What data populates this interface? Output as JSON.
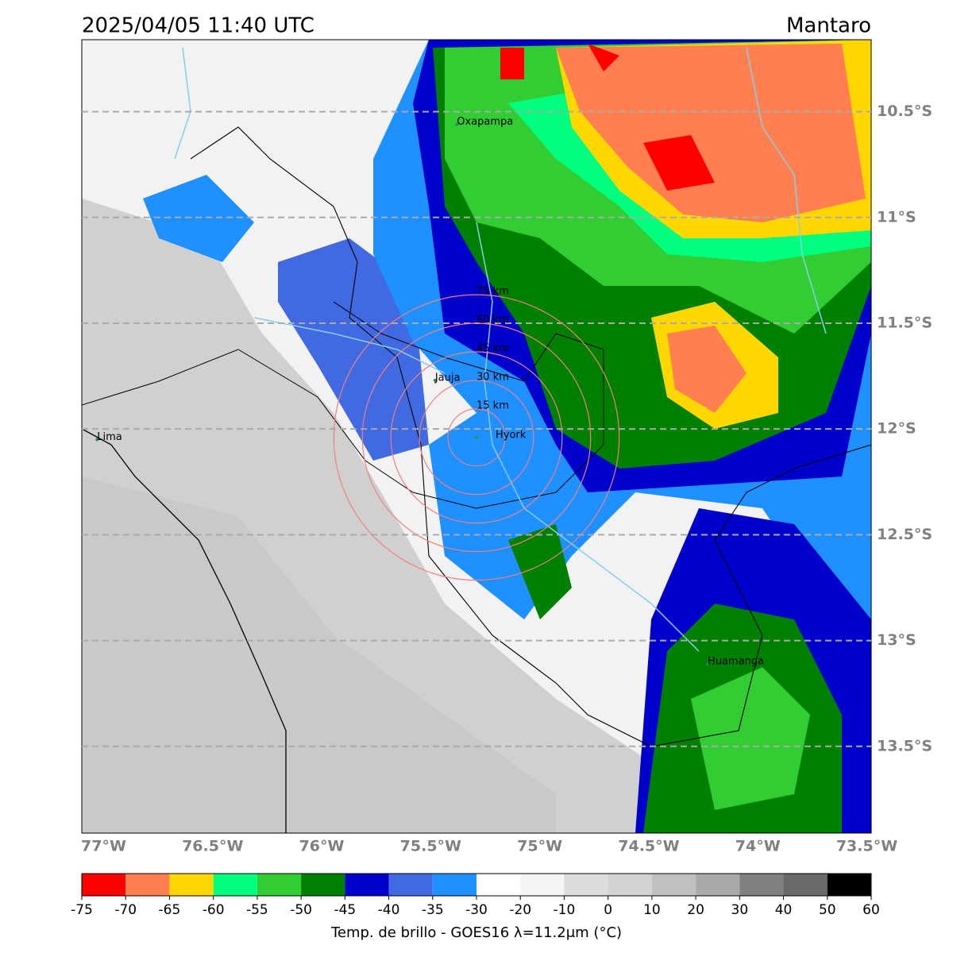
{
  "title": "2025/04/05 11:40 UTC",
  "region": "Mantaro",
  "map": {
    "xlim": [
      -77.1,
      -73.48
    ],
    "ylim": [
      -13.91,
      -10.16
    ],
    "xticks": [
      {
        "value": -77,
        "label": "77°W"
      },
      {
        "value": -76.5,
        "label": "76.5°W"
      },
      {
        "value": -76,
        "label": "76°W"
      },
      {
        "value": -75.5,
        "label": "75.5°W"
      },
      {
        "value": -75,
        "label": "75°W"
      },
      {
        "value": -74.5,
        "label": "74.5°W"
      },
      {
        "value": -74,
        "label": "74°W"
      },
      {
        "value": -73.5,
        "label": "73.5°W"
      }
    ],
    "yticks": [
      {
        "value": -10.5,
        "label": "10.5°S"
      },
      {
        "value": -11,
        "label": "11°S"
      },
      {
        "value": -11.5,
        "label": "11.5°S"
      },
      {
        "value": -12,
        "label": "12°S"
      },
      {
        "value": -12.5,
        "label": "12.5°S"
      },
      {
        "value": -13,
        "label": "13°S"
      },
      {
        "value": -13.5,
        "label": "13.5°S"
      }
    ],
    "grid": true,
    "cities": [
      {
        "name": "Oxapampa",
        "lon": -75.38,
        "lat": -10.56
      },
      {
        "name": "Jauja",
        "lon": -75.48,
        "lat": -11.77
      },
      {
        "name": "Hyork",
        "lon": -75.29,
        "lat": -12.04
      },
      {
        "name": "Lima",
        "lon": -77.03,
        "lat": -12.05
      },
      {
        "name": "Huamanga",
        "lon": -74.23,
        "lat": -13.11
      }
    ],
    "range_rings": {
      "center_lon": -75.29,
      "center_lat": -12.04,
      "radii_km": [
        15,
        30,
        45,
        60,
        75
      ],
      "labels": [
        "15 km",
        "30 km",
        "45 km",
        "60 km",
        "75 km"
      ],
      "color": "#f08080"
    }
  },
  "colorbar": {
    "ticks": [
      -75,
      -70,
      -65,
      -60,
      -55,
      -50,
      -45,
      -40,
      -35,
      -30,
      -20,
      -10,
      0,
      10,
      20,
      30,
      40,
      50,
      60
    ],
    "colors": [
      "#ff0000",
      "#ff7f50",
      "#ffd700",
      "#00ff7f",
      "#32cd32",
      "#008000",
      "#0000cd",
      "#4169e1",
      "#1e90ff",
      "#ffffff",
      "#f5f5f5",
      "#dcdcdc",
      "#d3d3d3",
      "#c0c0c0",
      "#a9a9a9",
      "#808080",
      "#696969",
      "#000000"
    ],
    "label": "Temp. de brillo - GOES16 λ=11.2μm (°C)"
  }
}
